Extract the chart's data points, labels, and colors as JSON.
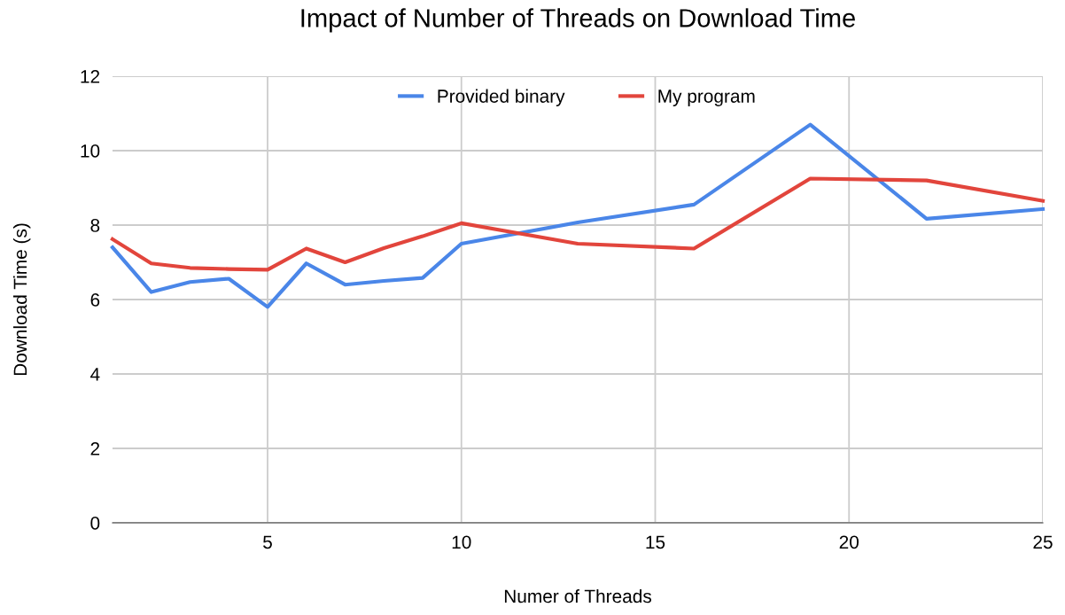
{
  "chart_data": {
    "type": "line",
    "title": "Impact of Number of Threads on Download Time",
    "xlabel": "Numer of Threads",
    "ylabel": "Download Time (s)",
    "x": [
      1,
      2,
      3,
      4,
      5,
      6,
      7,
      8,
      9,
      10,
      13,
      16,
      19,
      22,
      25
    ],
    "series": [
      {
        "name": "Provided binary",
        "color": "#4a86e8",
        "values": [
          7.4,
          6.2,
          6.47,
          6.56,
          5.8,
          6.97,
          6.4,
          6.5,
          6.58,
          7.5,
          8.07,
          8.55,
          10.7,
          8.17,
          8.43
        ]
      },
      {
        "name": "My program",
        "color": "#e2453c",
        "values": [
          7.62,
          6.97,
          6.85,
          6.82,
          6.8,
          7.37,
          7.0,
          7.38,
          7.7,
          8.05,
          7.5,
          7.37,
          9.25,
          9.2,
          8.65
        ]
      }
    ],
    "xlim": [
      1,
      25
    ],
    "xticks": [
      5,
      10,
      15,
      20,
      25
    ],
    "ylim": [
      0,
      12
    ],
    "yticks": [
      0,
      2,
      4,
      6,
      8,
      10,
      12
    ],
    "grid": true,
    "legend": "top",
    "marker": "none",
    "line_style": "solid"
  }
}
